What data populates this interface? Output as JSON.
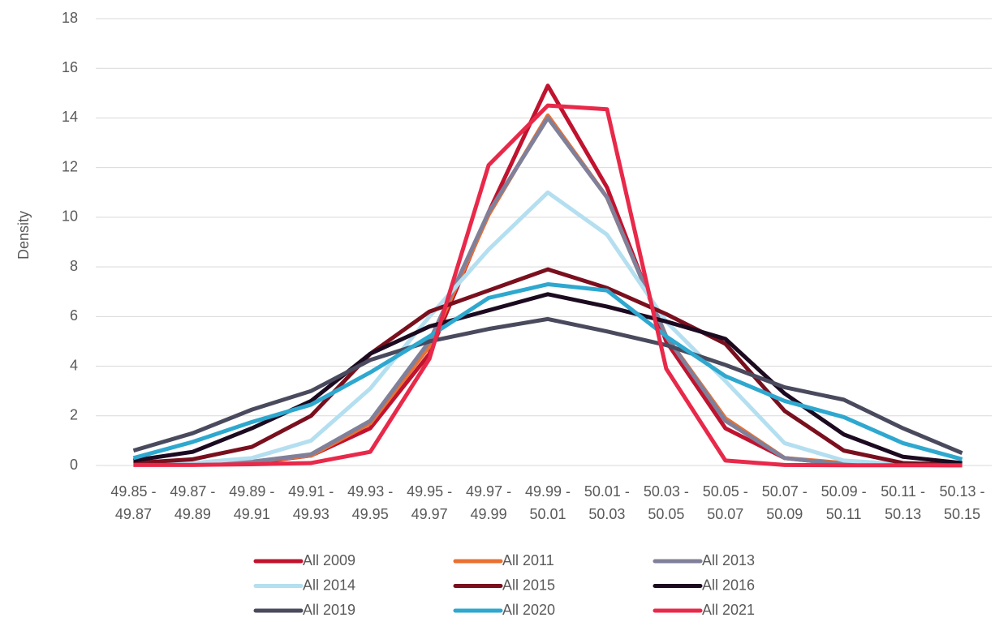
{
  "chart_data": {
    "type": "line",
    "y_label": "Density",
    "categories": [
      "49.85 - 49.87",
      "49.87 - 49.89",
      "49.89 - 49.91",
      "49.91 - 49.93",
      "49.93 - 49.95",
      "49.95 - 49.97",
      "49.97 - 49.99",
      "49.99 - 50.01",
      "50.01 - 50.03",
      "50.03 - 50.05",
      "50.05 - 50.07",
      "50.07 - 50.09",
      "50.09 - 50.11",
      "50.11 - 50.13",
      "50.13 - 50.15"
    ],
    "ylim": [
      0,
      18
    ],
    "yticks": [
      0,
      2,
      4,
      6,
      8,
      10,
      12,
      14,
      16,
      18
    ],
    "grid": true,
    "series": [
      {
        "name": "All 2009",
        "color": "#c0132f",
        "values": [
          0.05,
          0.05,
          0.1,
          0.4,
          1.5,
          4.5,
          10.2,
          15.3,
          11.2,
          5,
          1.5,
          0.3,
          0.05,
          0.02,
          0.01
        ]
      },
      {
        "name": "All 2011",
        "color": "#e97132",
        "values": [
          0.05,
          0.05,
          0.15,
          0.4,
          1.7,
          4.8,
          10.1,
          14.1,
          10.8,
          5.2,
          1.9,
          0.3,
          0.1,
          0.02,
          0.01
        ]
      },
      {
        "name": "All 2013",
        "color": "#80809a",
        "values": [
          0.05,
          0.05,
          0.15,
          0.45,
          1.8,
          5,
          10.2,
          14,
          10.8,
          5.2,
          1.8,
          0.3,
          0.05,
          0.02,
          0.01
        ]
      },
      {
        "name": "All 2014",
        "color": "#b4dff0",
        "values": [
          0.05,
          0.1,
          0.3,
          1,
          3.1,
          6,
          8.7,
          11,
          9.3,
          5.8,
          3.4,
          0.9,
          0.2,
          0.05,
          0.01
        ]
      },
      {
        "name": "All 2015",
        "color": "#7a0f1e",
        "values": [
          0.1,
          0.25,
          0.75,
          2,
          4.5,
          6.2,
          7.05,
          7.9,
          7.15,
          6.1,
          4.9,
          2.2,
          0.6,
          0.1,
          0.03
        ]
      },
      {
        "name": "All 2016",
        "color": "#1c0a20",
        "values": [
          0.2,
          0.55,
          1.5,
          2.6,
          4.5,
          5.6,
          6.25,
          6.9,
          6.4,
          5.8,
          5.1,
          2.9,
          1.25,
          0.35,
          0.1
        ]
      },
      {
        "name": "All 2019",
        "color": "#4a4a5e",
        "values": [
          0.6,
          1.3,
          2.25,
          3,
          4.25,
          5,
          5.5,
          5.9,
          5.4,
          4.85,
          4.05,
          3.15,
          2.65,
          1.5,
          0.5
        ]
      },
      {
        "name": "All 2020",
        "color": "#2ea8cf",
        "values": [
          0.3,
          0.95,
          1.75,
          2.45,
          3.75,
          5.2,
          6.75,
          7.3,
          7.05,
          5.2,
          3.6,
          2.6,
          1.95,
          0.9,
          0.25
        ]
      },
      {
        "name": "All 2021",
        "color": "#e8294a",
        "values": [
          0.02,
          0.02,
          0.05,
          0.1,
          0.55,
          4.3,
          12.1,
          14.5,
          14.35,
          3.9,
          0.2,
          0.02,
          0.01,
          0.01,
          0.01
        ]
      }
    ]
  }
}
